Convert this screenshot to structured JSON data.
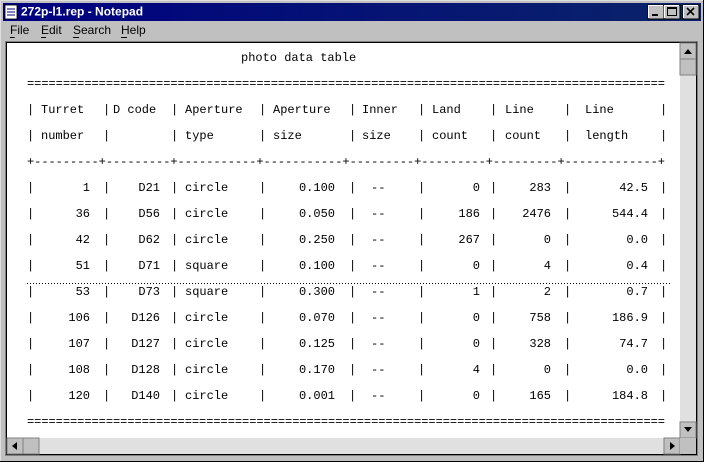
{
  "window": {
    "title": "272p-l1.rep - Notepad"
  },
  "menu": [
    "File",
    "Edit",
    "Search",
    "Help"
  ],
  "document": {
    "title": "photo data table",
    "rule_double": "=========================================================================================",
    "rule_single": "+---------+---------+-----------+-----------+---------+---------+---------+-------------+",
    "column_separator": "|",
    "header_rows": [
      [
        "Turret",
        "D code",
        "Aperture",
        "Aperture",
        "Inner",
        "Land",
        "Line",
        "Line"
      ],
      [
        "number",
        null,
        "type",
        "size",
        "size",
        "count",
        "count",
        "length"
      ]
    ],
    "rows": [
      [
        1,
        "D21",
        "circle",
        "0.100",
        "--",
        0,
        283,
        "42.5"
      ],
      [
        36,
        "D56",
        "circle",
        "0.050",
        "--",
        186,
        2476,
        "544.4"
      ],
      [
        42,
        "D62",
        "circle",
        "0.250",
        "--",
        267,
        0,
        "0.0"
      ],
      [
        51,
        "D71",
        "square",
        "0.100",
        "--",
        0,
        4,
        "0.4"
      ],
      [
        53,
        "D73",
        "square",
        "0.300",
        "--",
        1,
        2,
        "0.7"
      ],
      [
        106,
        "D126",
        "circle",
        "0.070",
        "--",
        0,
        758,
        "186.9"
      ],
      [
        107,
        "D127",
        "circle",
        "0.125",
        "--",
        0,
        328,
        "74.7"
      ],
      [
        108,
        "D128",
        "circle",
        "0.170",
        "--",
        4,
        0,
        "0.0"
      ],
      [
        120,
        "D140",
        "circle",
        "0.001",
        "--",
        0,
        165,
        "184.8"
      ]
    ]
  }
}
